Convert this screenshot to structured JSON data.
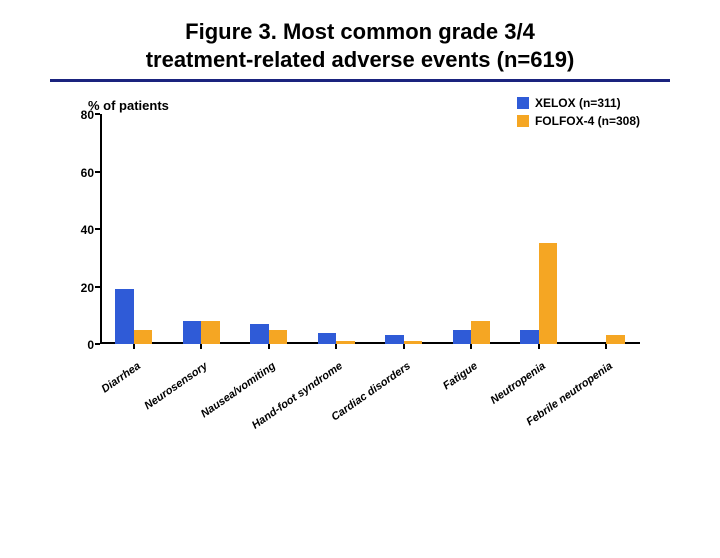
{
  "title_line1": "Figure 3. Most common grade 3/4",
  "title_line2": "treatment-related adverse events (n=619)",
  "title_underline_color": "#1a237e",
  "chart": {
    "type": "bar",
    "y_axis_label": "% of patients",
    "ylim": [
      0,
      80
    ],
    "ytick_step": 20,
    "yticks": [
      0,
      20,
      40,
      60,
      80
    ],
    "axis_color": "#000000",
    "background_color": "#ffffff",
    "label_fontsize": 12,
    "tick_fontsize": 12,
    "xlabel_fontsize": 11,
    "xlabel_rotation_deg": -35,
    "bar_group_width": 0.55,
    "categories": [
      "Diarrhea",
      "Neurosensory",
      "Nausea/vomiting",
      "Hand-foot syndrome",
      "Cardiac disorders",
      "Fatigue",
      "Neutropenia",
      "Febrile neutropenia"
    ],
    "series": [
      {
        "name": "XELOX (n=311)",
        "color": "#2f5bd7",
        "values": [
          19,
          8,
          7,
          4,
          3,
          5,
          5,
          0
        ]
      },
      {
        "name": "FOLFOX-4 (n=308)",
        "color": "#f5a623",
        "values": [
          5,
          8,
          5,
          1,
          1,
          8,
          35,
          3
        ]
      }
    ],
    "legend": {
      "position": "top-right",
      "swatch_size": 12,
      "fontsize": 12
    }
  }
}
